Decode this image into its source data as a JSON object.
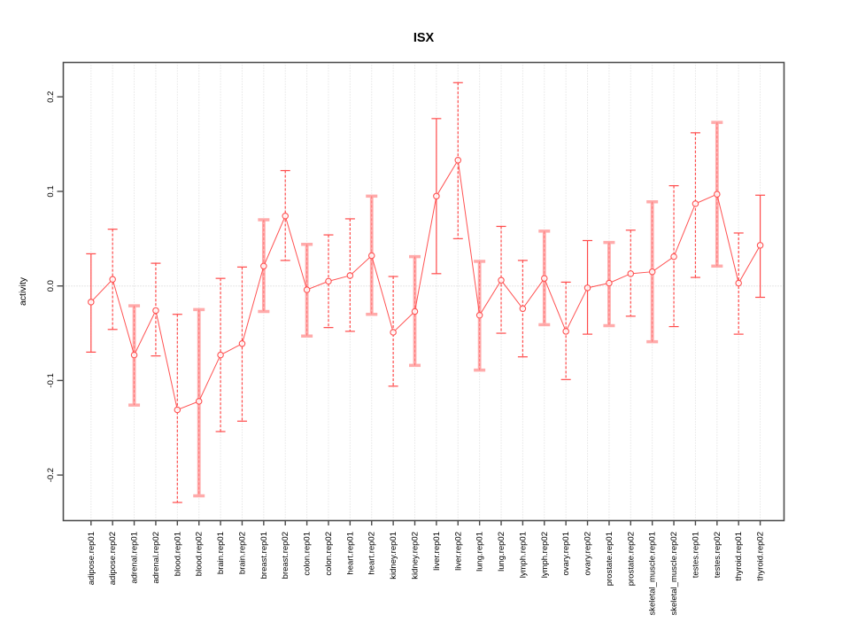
{
  "title": "ISX",
  "colors": {
    "series_red": "#ff5151",
    "thin_bar_red": "#ff4a4a",
    "thick_bar_pink": "#ffabab",
    "grid_gray": "#d9d9d9",
    "zero_line_gray": "#cccccc",
    "frame_gray": "#4d4d4d",
    "tick_gray": "#4a4a4a"
  },
  "chart_data": {
    "type": "line",
    "subtype": "points-with-error-bars",
    "title": "ISX",
    "xlabel": "",
    "ylabel": "activity",
    "ylim": [
      -0.248,
      0.237
    ],
    "ytick_values": [
      -0.2,
      -0.1,
      0.0,
      0.1,
      0.2
    ],
    "ytick_labels": [
      "-0.2",
      "-0.1",
      "0.0",
      "0.1",
      "0.2"
    ],
    "grid": "vertical-dotted-per-category-plus-zero-line",
    "legend": "none",
    "marker": "open-circle",
    "categories": [
      "adipose.rep01",
      "adipose.rep02",
      "adrenal.rep01",
      "adrenal.rep02",
      "blood.rep01",
      "blood.rep02",
      "brain.rep01",
      "brain.rep02",
      "breast.rep01",
      "breast.rep02",
      "colon.rep01",
      "colon.rep02",
      "heart.rep01",
      "heart.rep02",
      "kidney.rep01",
      "kidney.rep02",
      "liver.rep01",
      "liver.rep02",
      "lung.rep01",
      "lung.rep02",
      "lymph.rep01",
      "lymph.rep02",
      "ovary.rep01",
      "ovary.rep02",
      "prostate.rep01",
      "prostate.rep02",
      "skeletal_muscle.rep01",
      "skeletal_muscle.rep02",
      "testes.rep01",
      "testes.rep02",
      "thyroid.rep01",
      "thyroid.rep02"
    ],
    "series": [
      {
        "name": "activity",
        "values": [
          -0.017,
          0.007,
          -0.073,
          -0.026,
          -0.131,
          -0.122,
          -0.073,
          -0.061,
          0.021,
          0.074,
          -0.004,
          0.005,
          0.011,
          0.032,
          -0.049,
          -0.027,
          0.095,
          0.133,
          -0.031,
          0.006,
          -0.024,
          0.008,
          -0.048,
          -0.002,
          0.003,
          0.013,
          0.015,
          0.031,
          0.087,
          0.097,
          0.003,
          0.043
        ],
        "ci_low": [
          -0.07,
          -0.046,
          -0.126,
          -0.074,
          -0.229,
          -0.222,
          -0.154,
          -0.143,
          -0.027,
          0.027,
          -0.053,
          -0.044,
          -0.048,
          -0.03,
          -0.106,
          -0.084,
          0.013,
          0.05,
          -0.089,
          -0.05,
          -0.075,
          -0.041,
          -0.099,
          -0.051,
          -0.042,
          -0.032,
          -0.059,
          -0.043,
          0.009,
          0.021,
          -0.051,
          -0.012
        ],
        "ci_high": [
          0.034,
          0.06,
          -0.021,
          0.024,
          -0.03,
          -0.025,
          0.008,
          0.02,
          0.07,
          0.122,
          0.044,
          0.054,
          0.071,
          0.095,
          0.01,
          0.031,
          0.177,
          0.215,
          0.026,
          0.063,
          0.027,
          0.058,
          0.004,
          0.048,
          0.046,
          0.059,
          0.089,
          0.106,
          0.162,
          0.173,
          0.056,
          0.096
        ],
        "bar_style": [
          "thin-solid",
          "thin-dashed",
          "thick",
          "thin-dashed",
          "thin-dashed",
          "thick",
          "thin-dashed",
          "thin-dashed",
          "thick",
          "thin-dashed",
          "thick",
          "thin-dashed",
          "thin-dashed",
          "thick",
          "thin-dashed",
          "thick",
          "thin-solid",
          "thin-dashed",
          "thick",
          "thin-dashed",
          "thin-dashed",
          "thick",
          "thin-dashed",
          "thin-solid",
          "thick",
          "thin-dashed",
          "thick",
          "thin-dashed",
          "thin-dashed",
          "thick",
          "thin-dashed",
          "thin-solid"
        ]
      }
    ]
  }
}
